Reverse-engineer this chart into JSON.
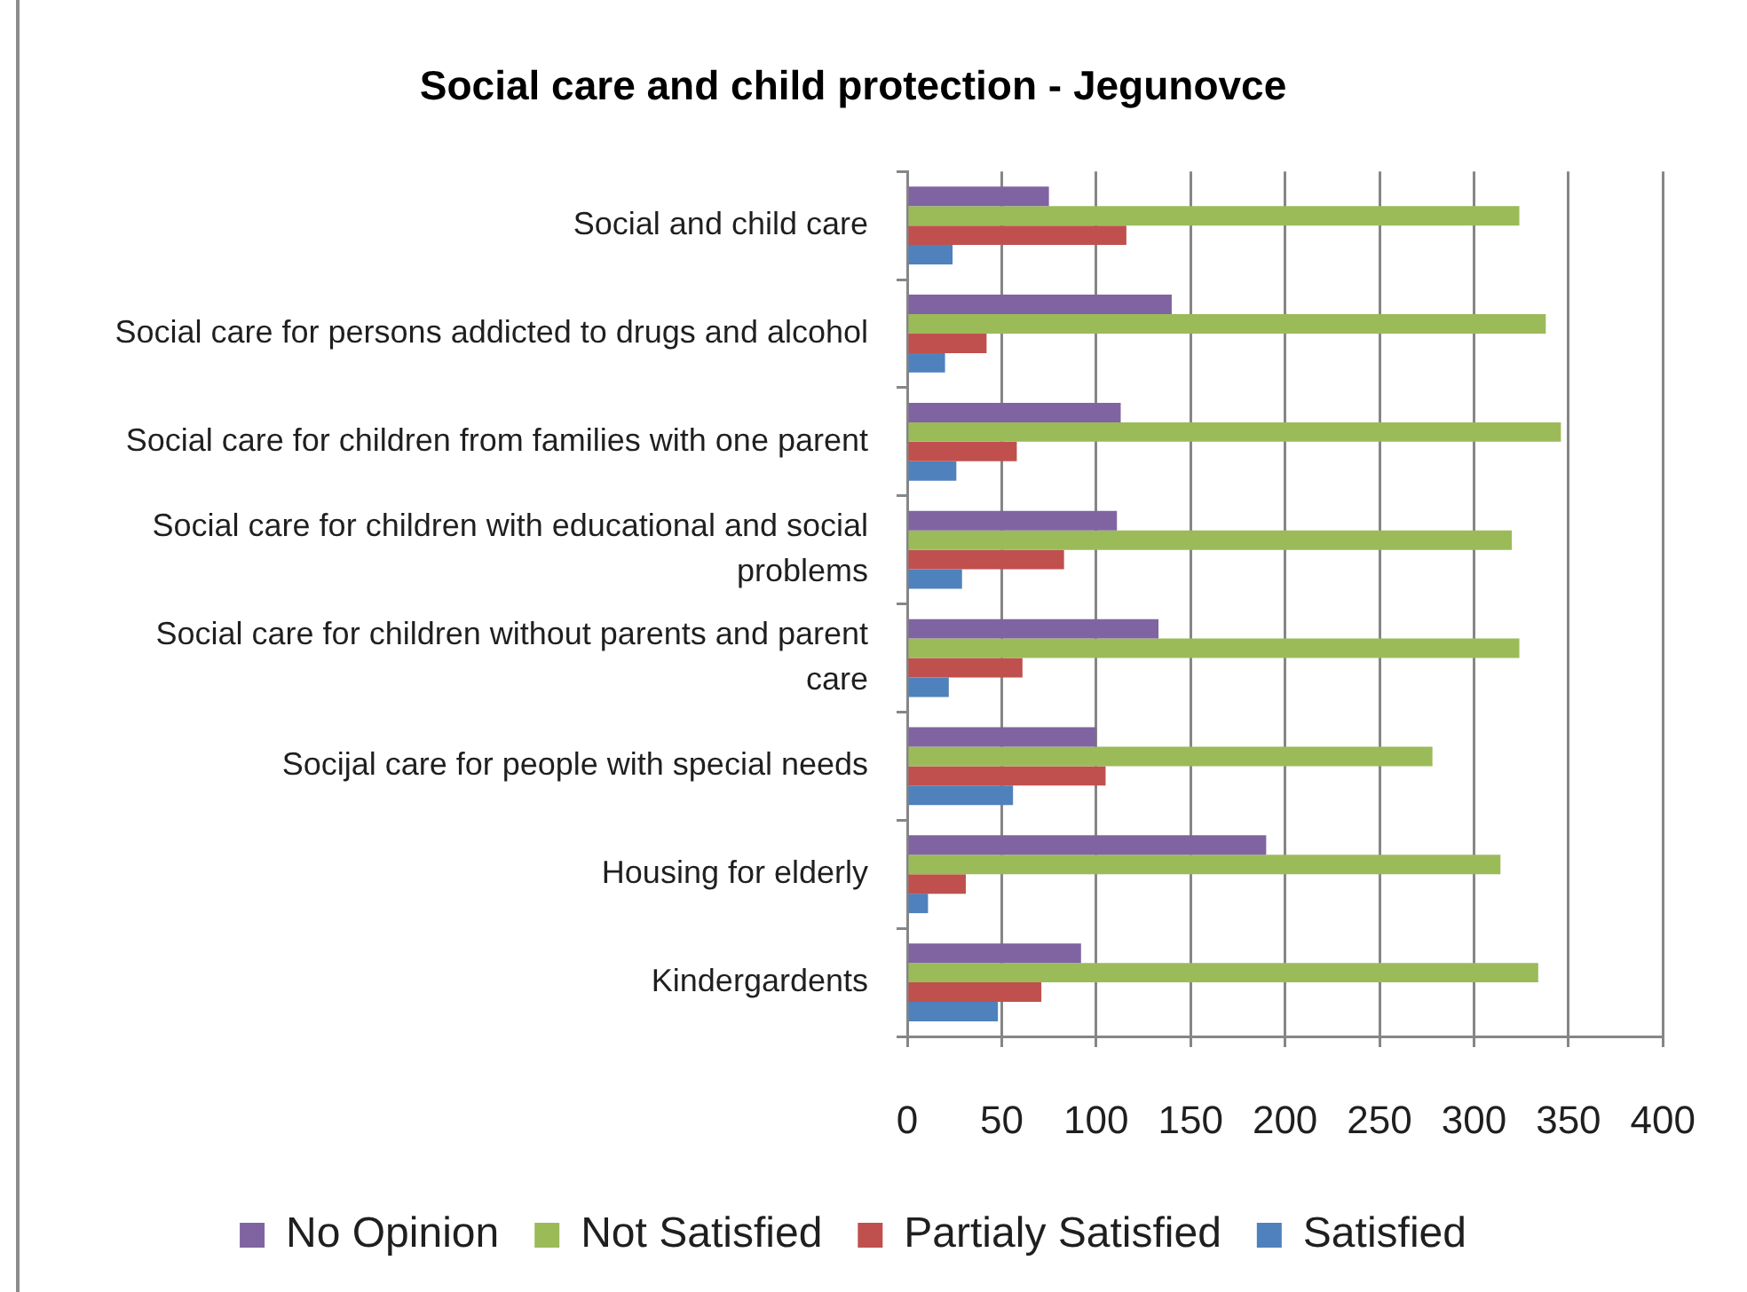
{
  "chart_data": {
    "type": "bar",
    "orientation": "horizontal",
    "title": "Social care and child protection - Jegunovce",
    "categories": [
      "Social and child care",
      "Social care for persons addicted to drugs and alcohol",
      "Social care for children from families with one parent",
      "Social care for children with educational and social problems",
      "Social care for children without parents and parent care",
      "Socijal care for people with special needs",
      "Housing for elderly",
      "Kindergardents"
    ],
    "series": [
      {
        "name": "No Opinion",
        "color": "#8064a2",
        "values": [
          75,
          140,
          113,
          111,
          133,
          100,
          190,
          92
        ]
      },
      {
        "name": "Not Satisfied",
        "color": "#9bbb59",
        "values": [
          324,
          338,
          346,
          320,
          324,
          278,
          314,
          334
        ]
      },
      {
        "name": "Partialy Satisfied",
        "color": "#c0504d",
        "values": [
          116,
          42,
          58,
          83,
          61,
          105,
          31,
          71
        ]
      },
      {
        "name": "Satisfied",
        "color": "#4f81bd",
        "values": [
          24,
          20,
          26,
          29,
          22,
          56,
          11,
          48
        ]
      }
    ],
    "xlim": [
      0,
      400
    ],
    "xticks": [
      0,
      50,
      100,
      150,
      200,
      250,
      300,
      350,
      400
    ],
    "grid": "x",
    "legend": "bottom"
  }
}
